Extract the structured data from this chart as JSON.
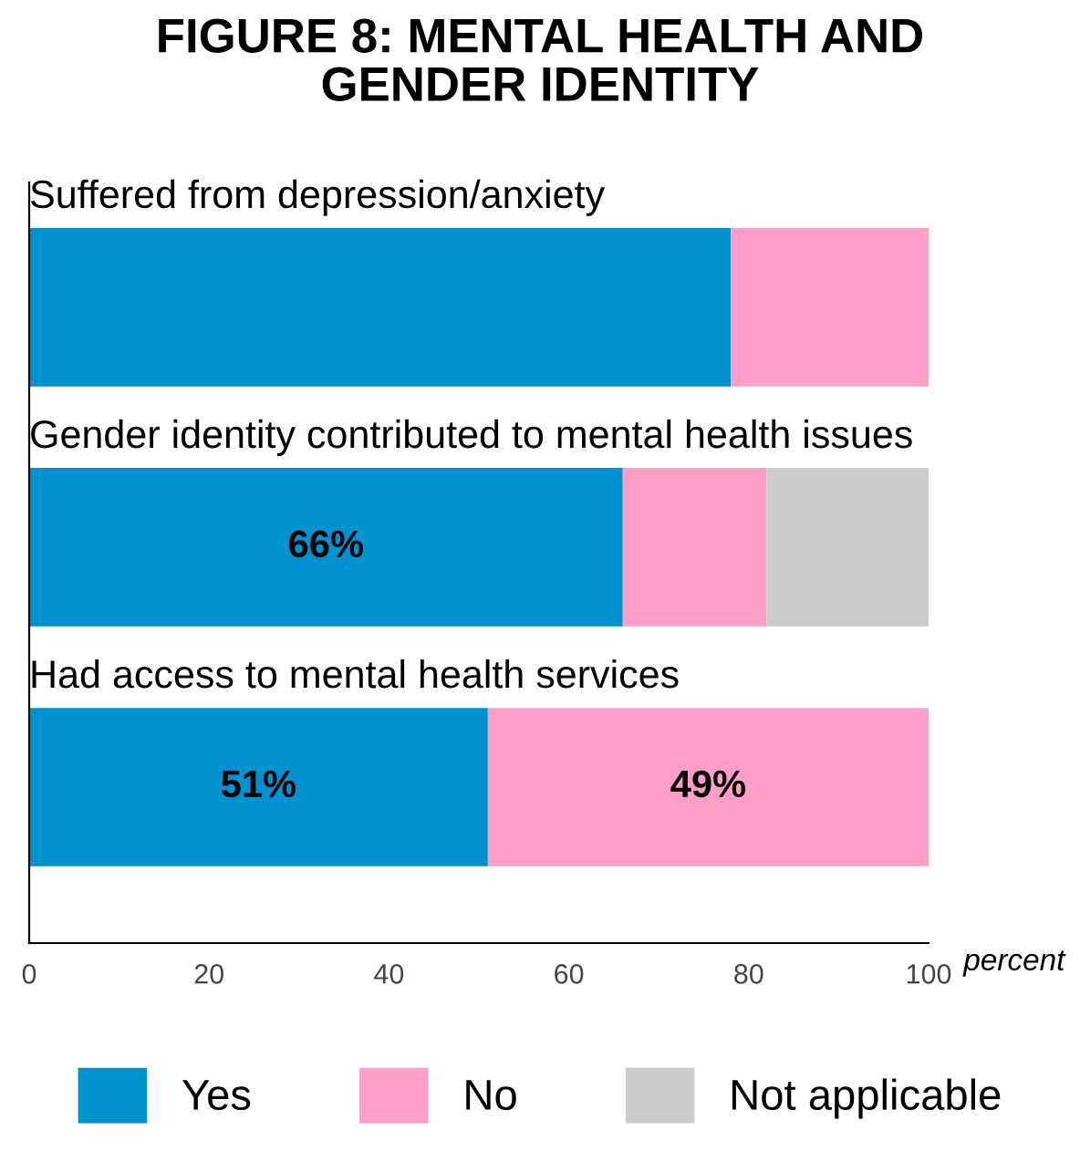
{
  "chart_data": {
    "type": "bar",
    "orientation": "horizontal",
    "stacked": true,
    "title": "FIGURE 8: MENTAL HEALTH AND\nGENDER IDENTITY",
    "xlabel": "percent",
    "categories": [
      "Suffered from depression/anxiety",
      "Gender identity contributed to mental health issues",
      "Had access to mental health services"
    ],
    "series": [
      {
        "name": "Yes",
        "color": "#0092d0",
        "values": [
          78,
          66,
          51
        ],
        "value_labels": [
          null,
          "66%",
          "51%"
        ]
      },
      {
        "name": "No",
        "color": "#ff9fc8",
        "values": [
          22,
          16,
          49
        ],
        "value_labels": [
          null,
          null,
          "49%"
        ]
      },
      {
        "name": "Not applicable",
        "color": "#cccccc",
        "values": [
          0,
          18,
          0
        ],
        "value_labels": [
          null,
          null,
          null
        ]
      }
    ],
    "xlim": [
      0,
      100
    ],
    "xticks": [
      0,
      20,
      40,
      60,
      80,
      100
    ],
    "grid": false,
    "legend": "bottom"
  }
}
